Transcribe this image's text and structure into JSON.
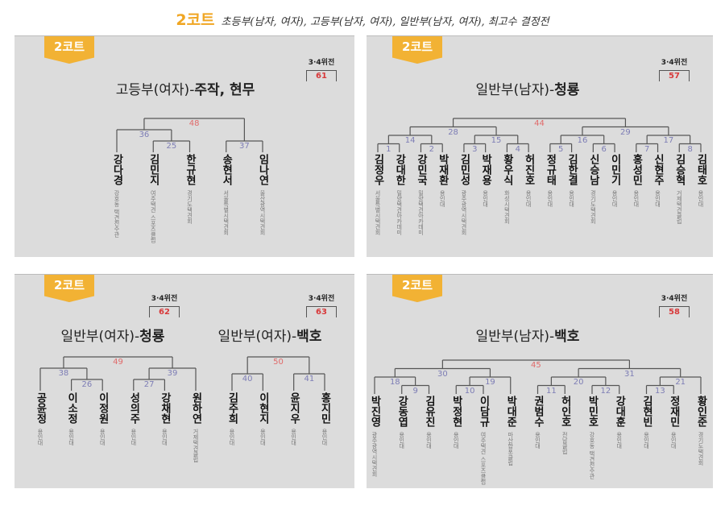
{
  "header": {
    "court": "2코트",
    "description": "초등부(남자, 여자), 고등부(남자, 여자), 일반부(남자, 여자), 최고수 결정전"
  },
  "colors": {
    "badge": "#f2b234",
    "final_match": "#e06a6a",
    "match": "#7d7db5",
    "third_place": "#d8393a"
  },
  "panels": [
    {
      "badge": "2코트",
      "brackets": [
        {
          "title_prefix": "고등부(여자)-",
          "title_team": "주작, 현무",
          "third_place_label": "3·4위전",
          "third_place_match": "61",
          "tree": {
            "match": "48",
            "children": [
              {
                "match": "36",
                "children": [
                  {
                    "name": "강다경",
                    "affiliation": "강호동 택견전수관"
                  },
                  {
                    "match": "25",
                    "children": [
                      {
                        "name": "김민지",
                        "affiliation": "여주택견 스포츠클럽"
                      },
                      {
                        "name": "한규현",
                        "affiliation": "경기도택견회"
                      }
                    ]
                  }
                ]
              },
              {
                "match": "37",
                "children": [
                  {
                    "name": "송현서",
                    "affiliation": "서울특별시택견회"
                  },
                  {
                    "name": "임나연",
                    "affiliation": "울산광역시택견회"
                  }
                ]
              }
            ]
          }
        }
      ]
    },
    {
      "badge": "2코트",
      "brackets": [
        {
          "title_prefix": "일반부(남자)-",
          "title_team": "청룡",
          "third_place_label": "3·4위전",
          "third_place_match": "57",
          "tree": {
            "match": "44",
            "children": [
              {
                "match": "28",
                "children": [
                  {
                    "match": "14",
                    "children": [
                      {
                        "match": "1",
                        "children": [
                          {
                            "name": "김정우",
                            "affiliation": "서울특별시택견회"
                          },
                          {
                            "name": "강대한",
                            "affiliation": "밀양택견아카데미"
                          }
                        ]
                      },
                      {
                        "match": "2",
                        "children": [
                          {
                            "name": "강민국",
                            "affiliation": "밀양택견아카데미"
                          },
                          {
                            "name": "박재환",
                            "affiliation": "용인대"
                          }
                        ]
                      }
                    ]
                  },
                  {
                    "match": "15",
                    "children": [
                      {
                        "match": "3",
                        "children": [
                          {
                            "name": "김민성",
                            "affiliation": "광주광역시택견회"
                          },
                          {
                            "name": "박재용",
                            "affiliation": "용인대"
                          }
                        ]
                      },
                      {
                        "match": "4",
                        "children": [
                          {
                            "name": "황우식",
                            "affiliation": "화성시택견회"
                          },
                          {
                            "name": "허진호",
                            "affiliation": "용인대"
                          }
                        ]
                      }
                    ]
                  }
                ]
              },
              {
                "match": "29",
                "children": [
                  {
                    "match": "16",
                    "children": [
                      {
                        "match": "5",
                        "children": [
                          {
                            "name": "정규태",
                            "affiliation": "용인대"
                          },
                          {
                            "name": "김한결",
                            "affiliation": "용인대"
                          }
                        ]
                      },
                      {
                        "match": "6",
                        "children": [
                          {
                            "name": "신승남",
                            "affiliation": "경기도택견회"
                          },
                          {
                            "name": "이민기",
                            "affiliation": "용인대"
                          }
                        ]
                      }
                    ]
                  },
                  {
                    "match": "17",
                    "children": [
                      {
                        "match": "7",
                        "children": [
                          {
                            "name": "홍성민",
                            "affiliation": "용인대"
                          },
                          {
                            "name": "신현주",
                            "affiliation": "용인대"
                          }
                        ]
                      },
                      {
                        "match": "8",
                        "children": [
                          {
                            "name": "김승혁",
                            "affiliation": "거제택견클럽"
                          },
                          {
                            "name": "김태호",
                            "affiliation": "용인대"
                          }
                        ]
                      }
                    ]
                  }
                ]
              }
            ]
          }
        }
      ]
    },
    {
      "badge": "2코트",
      "brackets": [
        {
          "title_prefix": "일반부(여자)-",
          "title_team": "청룡",
          "third_place_label": "3·4위전",
          "third_place_match": "62",
          "tree": {
            "match": "49",
            "children": [
              {
                "match": "38",
                "children": [
                  {
                    "name": "공윤정",
                    "affiliation": "용인대"
                  },
                  {
                    "match": "26",
                    "children": [
                      {
                        "name": "이소정",
                        "affiliation": "용인대"
                      },
                      {
                        "name": "이정원",
                        "affiliation": "용인대"
                      }
                    ]
                  }
                ]
              },
              {
                "match": "39",
                "children": [
                  {
                    "match": "27",
                    "children": [
                      {
                        "name": "성의주",
                        "affiliation": "용인대"
                      },
                      {
                        "name": "강채현",
                        "affiliation": "용인대"
                      }
                    ]
                  },
                  {
                    "name": "원하연",
                    "affiliation": "거제택견클럽"
                  }
                ]
              }
            ]
          }
        },
        {
          "title_prefix": "일반부(여자)-",
          "title_team": "백호",
          "third_place_label": "3·4위전",
          "third_place_match": "63",
          "tree": {
            "match": "50",
            "children": [
              {
                "match": "40",
                "children": [
                  {
                    "name": "김주희",
                    "affiliation": "용인대"
                  },
                  {
                    "name": "이현지",
                    "affiliation": "용인대"
                  }
                ]
              },
              {
                "match": "41",
                "children": [
                  {
                    "name": "윤지우",
                    "affiliation": "용인대"
                  },
                  {
                    "name": "홍지민",
                    "affiliation": "용인대"
                  }
                ]
              }
            ]
          }
        }
      ]
    },
    {
      "badge": "2코트",
      "brackets": [
        {
          "title_prefix": "일반부(남자)-",
          "title_team": "백호",
          "third_place_label": "3·4위전",
          "third_place_match": "58",
          "tree": {
            "match": "45",
            "children": [
              {
                "match": "30",
                "children": [
                  {
                    "match": "18",
                    "children": [
                      {
                        "name": "박진영",
                        "affiliation": "광주광역시택견회"
                      },
                      {
                        "match": "9",
                        "children": [
                          {
                            "name": "강동엽",
                            "affiliation": "용인대"
                          },
                          {
                            "name": "김유진",
                            "affiliation": "용인대"
                          }
                        ]
                      }
                    ]
                  },
                  {
                    "match": "19",
                    "children": [
                      {
                        "match": "10",
                        "children": [
                          {
                            "name": "박정현",
                            "affiliation": "용인대"
                          },
                          {
                            "name": "이담규",
                            "affiliation": "여주택견 스포츠클럽"
                          }
                        ]
                      },
                      {
                        "name": "박대준",
                        "affiliation": "마산합포클럽"
                      }
                    ]
                  }
                ]
              },
              {
                "match": "31",
                "children": [
                  {
                    "match": "20",
                    "children": [
                      {
                        "match": "11",
                        "children": [
                          {
                            "name": "권범수",
                            "affiliation": "용인대"
                          },
                          {
                            "name": "허인호",
                            "affiliation": "전남클럽"
                          }
                        ]
                      },
                      {
                        "match": "12",
                        "children": [
                          {
                            "name": "박민호",
                            "affiliation": "강호동 택견전수관"
                          },
                          {
                            "name": "강대훈",
                            "affiliation": "용인대"
                          }
                        ]
                      }
                    ]
                  },
                  {
                    "match": "21",
                    "children": [
                      {
                        "match": "13",
                        "children": [
                          {
                            "name": "김현빈",
                            "affiliation": "용인대"
                          },
                          {
                            "name": "정재민",
                            "affiliation": "용인대"
                          }
                        ]
                      },
                      {
                        "name": "황인준",
                        "affiliation": "경기도택견회"
                      }
                    ]
                  }
                ]
              }
            ]
          }
        }
      ]
    }
  ]
}
